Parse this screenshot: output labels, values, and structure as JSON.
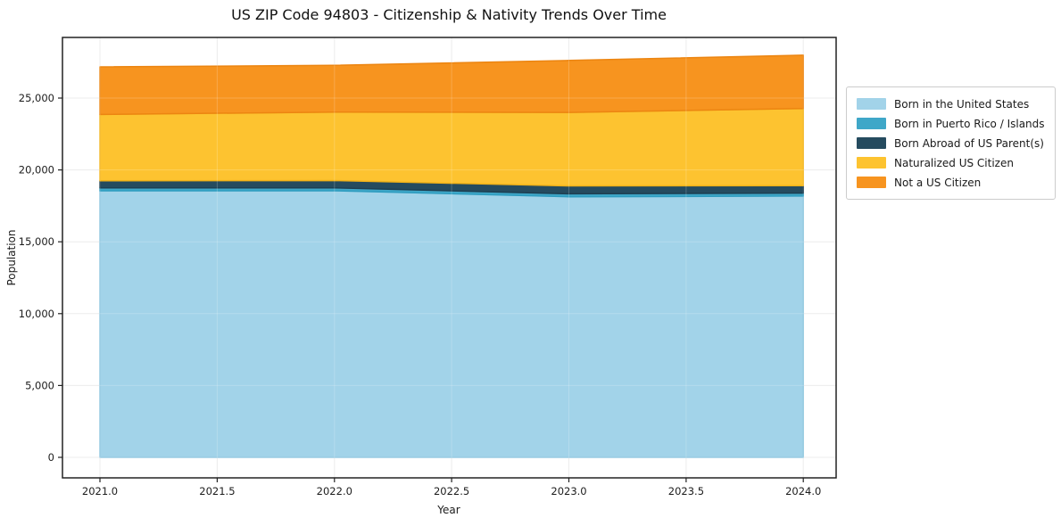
{
  "figure": {
    "background": "#ffffff",
    "axis_color": "#222222",
    "grid_color": "#e9e9e9",
    "legend_border_color": "#cccccc",
    "tick_label_color": "#1c1c1c"
  },
  "chart_data": {
    "type": "area",
    "stacked": true,
    "title": "US ZIP Code 94803 - Citizenship & Nativity Trends Over Time",
    "xlabel": "Year",
    "ylabel": "Population",
    "x": [
      2021.0,
      2022.0,
      2023.0,
      2024.0
    ],
    "series": [
      {
        "name": "Born in the United States",
        "color": "#a2d3e9",
        "edge": "#8ac4de",
        "values": [
          18550,
          18550,
          18130,
          18180
        ]
      },
      {
        "name": "Born in Puerto Rico / Islands",
        "color": "#3fa7c8",
        "edge": "#2f9dc0",
        "values": [
          200,
          205,
          210,
          205
        ]
      },
      {
        "name": "Born Abroad of US Parent(s)",
        "color": "#254b5f",
        "edge": "#1e3f52",
        "values": [
          500,
          505,
          550,
          520
        ]
      },
      {
        "name": "Naturalized US Citizen",
        "color": "#fdc330",
        "edge": "#f3b318",
        "values": [
          4610,
          4765,
          5110,
          5370
        ]
      },
      {
        "name": "Not a US Citizen",
        "color": "#f7941f",
        "edge": "#ec8511",
        "values": [
          3310,
          3250,
          3620,
          3710
        ]
      }
    ],
    "stack_totals": [
      27170,
      27275,
      27620,
      27985
    ],
    "x_ticks": [
      "2021.0",
      "2021.5",
      "2022.0",
      "2022.5",
      "2023.0",
      "2023.5",
      "2024.0"
    ],
    "x_tick_values": [
      2021.0,
      2021.5,
      2022.0,
      2022.5,
      2023.0,
      2023.5,
      2024.0
    ],
    "y_ticks": [
      "0",
      "5,000",
      "10,000",
      "15,000",
      "20,000",
      "25,000"
    ],
    "y_tick_values": [
      0,
      5000,
      10000,
      15000,
      20000,
      25000
    ],
    "xlim": [
      2020.84,
      2024.14
    ],
    "ylim": [
      -1430,
      29220
    ],
    "grid": true,
    "legend_position": "outside-right"
  }
}
